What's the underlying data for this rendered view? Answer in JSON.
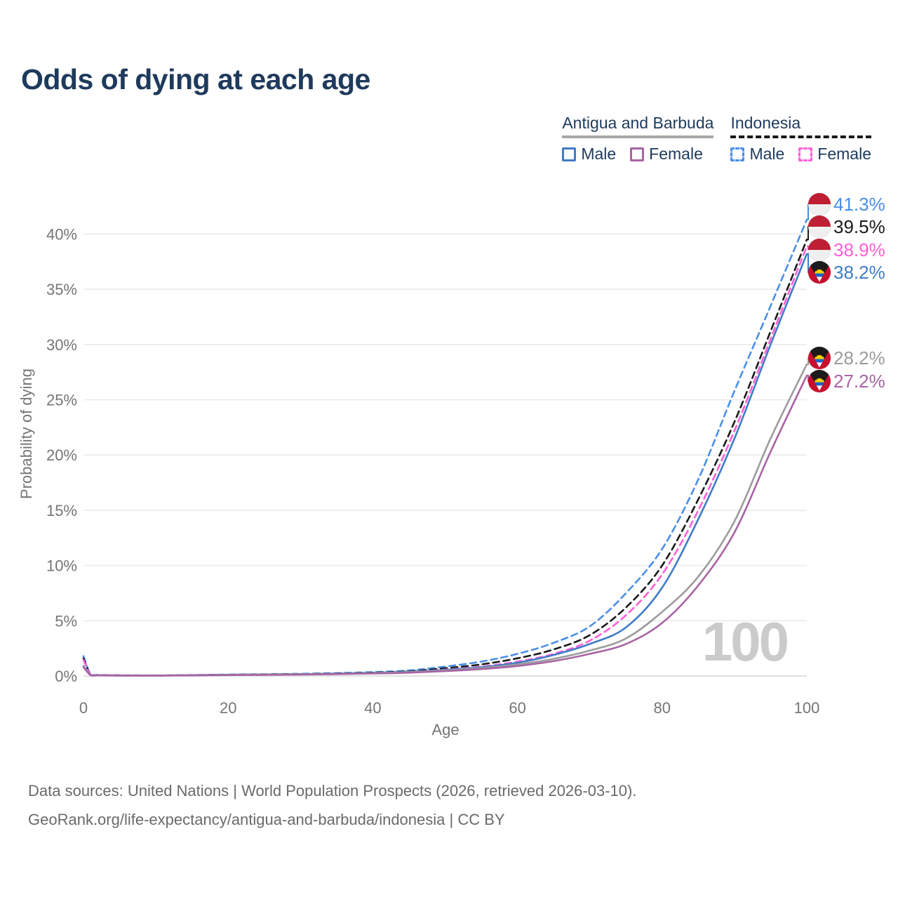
{
  "title": "Odds of dying at each age",
  "watermark": "100",
  "legend": {
    "groups": [
      {
        "label": "Antigua and Barbuda",
        "line_style": "solid",
        "line_color": "#A8A8A8",
        "items": [
          {
            "label": "Male",
            "color": "#3F7CC8",
            "dashed": false
          },
          {
            "label": "Female",
            "color": "#A864A4",
            "dashed": false
          }
        ]
      },
      {
        "label": "Indonesia",
        "line_style": "dashed",
        "line_color": "#1A1A1A",
        "items": [
          {
            "label": "Male",
            "color": "#4A8FE8",
            "dashed": true
          },
          {
            "label": "Female",
            "color": "#FF5FD6",
            "dashed": true
          }
        ]
      }
    ]
  },
  "footer": {
    "line1": "Data sources: United Nations | World Population Prospects (2026, retrieved 2026-03-10).",
    "line2": "GeoRank.org/life-expectancy/antigua-and-barbuda/indonesia | CC BY"
  },
  "chart_data": {
    "type": "line",
    "title": "Odds of dying at each age",
    "xlabel": "Age",
    "ylabel": "Probability of dying",
    "xlim": [
      0,
      100
    ],
    "ylim": [
      0,
      43
    ],
    "grid": "horizontal",
    "legend_position": "top-right",
    "x_ticks": [
      0,
      20,
      40,
      60,
      80,
      100
    ],
    "y_tick_values": [
      0,
      5,
      10,
      15,
      20,
      25,
      30,
      35,
      40
    ],
    "y_tick_labels": [
      "0%",
      "5%",
      "10%",
      "15%",
      "20%",
      "25%",
      "30%",
      "35%",
      "40%"
    ],
    "x": [
      0,
      1,
      2,
      5,
      10,
      15,
      20,
      25,
      30,
      35,
      40,
      45,
      50,
      55,
      60,
      65,
      70,
      75,
      80,
      85,
      90,
      95,
      100
    ],
    "series": [
      {
        "name": "Male",
        "country": "Indonesia",
        "flag": "indonesia",
        "color": "#4A8FE8",
        "dash": true,
        "end_label": "41.3%",
        "end_value": 41.3,
        "values": [
          1.8,
          0.12,
          0.09,
          0.06,
          0.05,
          0.08,
          0.13,
          0.16,
          0.2,
          0.26,
          0.35,
          0.5,
          0.85,
          1.3,
          2.0,
          3.0,
          4.5,
          7.5,
          11.5,
          17.8,
          25.8,
          33.5,
          41.3
        ]
      },
      {
        "name": "Both sexes",
        "country": "Indonesia",
        "flag": "indonesia",
        "color": "#1A1A1A",
        "dash": true,
        "end_label": "39.5%",
        "end_value": 39.5,
        "values": [
          1.6,
          0.11,
          0.08,
          0.055,
          0.045,
          0.07,
          0.11,
          0.14,
          0.17,
          0.22,
          0.3,
          0.42,
          0.7,
          1.05,
          1.6,
          2.4,
          3.7,
          6.2,
          10.0,
          16.0,
          23.0,
          31.2,
          39.5
        ]
      },
      {
        "name": "Female",
        "country": "Indonesia",
        "flag": "indonesia",
        "color": "#FF5FD6",
        "dash": true,
        "end_label": "38.9%",
        "end_value": 38.9,
        "values": [
          1.45,
          0.1,
          0.075,
          0.05,
          0.04,
          0.06,
          0.09,
          0.11,
          0.14,
          0.18,
          0.25,
          0.36,
          0.58,
          0.85,
          1.3,
          2.0,
          3.2,
          5.5,
          9.2,
          15.0,
          22.2,
          30.5,
          38.9
        ]
      },
      {
        "name": "Male",
        "country": "Antigua and Barbuda",
        "flag": "antigua-and-barbuda",
        "color": "#3F7CC8",
        "dash": false,
        "end_label": "38.2%",
        "end_value": 38.2,
        "values": [
          0.9,
          0.07,
          0.06,
          0.045,
          0.04,
          0.07,
          0.11,
          0.13,
          0.16,
          0.2,
          0.27,
          0.38,
          0.55,
          0.8,
          1.2,
          1.9,
          2.9,
          4.4,
          8.0,
          14.2,
          21.5,
          30.0,
          38.2
        ]
      },
      {
        "name": "Both sexes",
        "country": "Antigua and Barbuda",
        "flag": "antigua-and-barbuda",
        "color": "#9C9C9C",
        "dash": false,
        "end_label": "28.2%",
        "end_value": 28.2,
        "values": [
          0.85,
          0.065,
          0.055,
          0.042,
          0.04,
          0.06,
          0.1,
          0.12,
          0.15,
          0.19,
          0.25,
          0.35,
          0.5,
          0.72,
          1.05,
          1.55,
          2.3,
          3.4,
          5.8,
          9.0,
          14.0,
          21.5,
          28.2
        ]
      },
      {
        "name": "Female",
        "country": "Antigua and Barbuda",
        "flag": "antigua-and-barbuda",
        "color": "#A864A4",
        "dash": false,
        "end_label": "27.2%",
        "end_value": 27.2,
        "values": [
          0.8,
          0.06,
          0.05,
          0.04,
          0.035,
          0.05,
          0.08,
          0.1,
          0.13,
          0.17,
          0.22,
          0.3,
          0.44,
          0.62,
          0.9,
          1.35,
          2.0,
          2.9,
          4.8,
          8.2,
          13.0,
          20.3,
          27.2
        ]
      }
    ]
  }
}
